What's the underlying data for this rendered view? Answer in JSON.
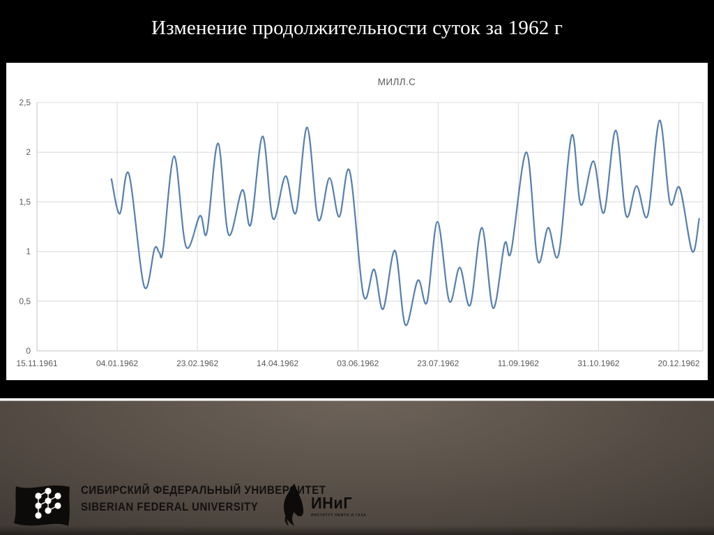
{
  "slide": {
    "title": "Изменение продолжительности суток за 1962 г"
  },
  "chart_data": {
    "type": "line",
    "title": "МИЛЛ.С",
    "grid": true,
    "legend": "none",
    "line_color": "#567fae",
    "gridline_color": "#d9d9d9",
    "axis_color": "#c3c3c3",
    "label_color": "#595959",
    "x_axis": {
      "unit": "days since 15.11.1961",
      "range_days": [
        0,
        415
      ],
      "tick_positions_days": [
        0,
        50,
        100,
        150,
        200,
        250,
        300,
        350,
        400
      ],
      "tick_labels": [
        "15.11.1961",
        "04.01.1962",
        "23.02.1962",
        "14.04.1962",
        "03.06.1962",
        "23.07.1962",
        "11.09.1962",
        "31.10.1962",
        "20.12.1962"
      ]
    },
    "y_axis": {
      "unit": "милл.с",
      "range": [
        0,
        2.5
      ],
      "tick_values": [
        0,
        0.5,
        1,
        1.5,
        2,
        2.5
      ],
      "tick_labels": [
        "0",
        "0,5",
        "1",
        "1,5",
        "2",
        "2,5"
      ]
    },
    "points": [
      [
        46.4,
        1.73
      ],
      [
        51.6,
        1.38
      ],
      [
        57.3,
        1.78
      ],
      [
        66.8,
        0.65
      ],
      [
        73.3,
        1.03
      ],
      [
        76.2,
        0.99
      ],
      [
        78.6,
        1.02
      ],
      [
        85.5,
        1.96
      ],
      [
        92.9,
        1.05
      ],
      [
        101.6,
        1.36
      ],
      [
        105.9,
        1.19
      ],
      [
        112.8,
        2.09
      ],
      [
        119.4,
        1.17
      ],
      [
        128.0,
        1.62
      ],
      [
        133.2,
        1.27
      ],
      [
        140.6,
        2.16
      ],
      [
        147.1,
        1.33
      ],
      [
        154.9,
        1.76
      ],
      [
        161.4,
        1.39
      ],
      [
        168.4,
        2.25
      ],
      [
        175.3,
        1.32
      ],
      [
        182.3,
        1.74
      ],
      [
        188.4,
        1.35
      ],
      [
        194.9,
        1.81
      ],
      [
        203.5,
        0.56
      ],
      [
        210.1,
        0.82
      ],
      [
        215.7,
        0.42
      ],
      [
        223.1,
        1.01
      ],
      [
        229.6,
        0.26
      ],
      [
        237.4,
        0.71
      ],
      [
        243.1,
        0.49
      ],
      [
        249.6,
        1.3
      ],
      [
        257.0,
        0.5
      ],
      [
        263.5,
        0.84
      ],
      [
        270.0,
        0.46
      ],
      [
        277.3,
        1.24
      ],
      [
        284.3,
        0.43
      ],
      [
        291.5,
        1.08
      ],
      [
        295.5,
        1.0
      ],
      [
        305.1,
        2.0
      ],
      [
        312.1,
        0.91
      ],
      [
        318.6,
        1.24
      ],
      [
        325.1,
        0.97
      ],
      [
        333.3,
        2.17
      ],
      [
        339.0,
        1.47
      ],
      [
        346.8,
        1.91
      ],
      [
        353.3,
        1.39
      ],
      [
        360.7,
        2.22
      ],
      [
        367.2,
        1.36
      ],
      [
        373.7,
        1.66
      ],
      [
        380.6,
        1.36
      ],
      [
        388.0,
        2.32
      ],
      [
        394.5,
        1.49
      ],
      [
        400.6,
        1.64
      ],
      [
        408.4,
        1.0
      ],
      [
        412.7,
        1.33
      ]
    ]
  },
  "footer": {
    "sfu_line1": "СИБИРСКИЙ ФЕДЕРАЛЬНЫЙ УНИВЕРСИТЕТ",
    "sfu_line2": "SIBERIAN FEDERAL UNIVERSITY",
    "inig_abbr": "ИНиГ",
    "inig_sub": "ИНСТИТУТ НЕФТИ И ГАЗА"
  }
}
